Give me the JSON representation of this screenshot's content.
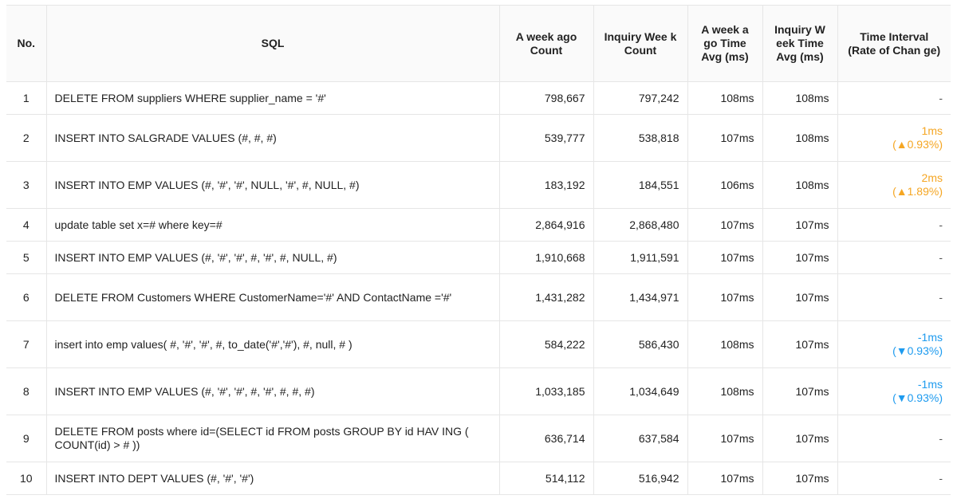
{
  "table": {
    "headers": {
      "no": "No.",
      "sql": "SQL",
      "a_count": "A week ago Count",
      "i_count": "Inquiry Wee k Count",
      "a_avg": "A week a go Time Avg (ms)",
      "i_avg": "Inquiry W eek Time Avg (ms)",
      "rate": "Time Interval (Rate of Chan ge)"
    },
    "rows": [
      {
        "no": "1",
        "sql": "DELETE FROM suppliers WHERE supplier_name = '#'",
        "a_count": "798,667",
        "i_count": "797,242",
        "a_avg": "108ms",
        "i_avg": "108ms",
        "rate_value": "-",
        "rate_pct": "",
        "trend": "none"
      },
      {
        "no": "2",
        "sql": "INSERT INTO SALGRADE VALUES (#, #, #)",
        "a_count": "539,777",
        "i_count": "538,818",
        "a_avg": "107ms",
        "i_avg": "108ms",
        "rate_value": "1ms",
        "rate_pct": "(▲0.93%)",
        "trend": "up"
      },
      {
        "no": "3",
        "sql": "INSERT INTO EMP VALUES (#, '#', '#', NULL, '#', #, NULL, #)",
        "a_count": "183,192",
        "i_count": "184,551",
        "a_avg": "106ms",
        "i_avg": "108ms",
        "rate_value": "2ms",
        "rate_pct": "(▲1.89%)",
        "trend": "up"
      },
      {
        "no": "4",
        "sql": "update table set x=# where key=#",
        "a_count": "2,864,916",
        "i_count": "2,868,480",
        "a_avg": "107ms",
        "i_avg": "107ms",
        "rate_value": "-",
        "rate_pct": "",
        "trend": "none"
      },
      {
        "no": "5",
        "sql": "INSERT INTO EMP VALUES (#, '#', '#', #, '#', #, NULL, #)",
        "a_count": "1,910,668",
        "i_count": "1,911,591",
        "a_avg": "107ms",
        "i_avg": "107ms",
        "rate_value": "-",
        "rate_pct": "",
        "trend": "none"
      },
      {
        "no": "6",
        "sql": "DELETE FROM Customers WHERE CustomerName='#' AND ContactName ='#'",
        "a_count": "1,431,282",
        "i_count": "1,434,971",
        "a_avg": "107ms",
        "i_avg": "107ms",
        "rate_value": "-",
        "rate_pct": "",
        "trend": "none"
      },
      {
        "no": "7",
        "sql": "insert into emp values( #, '#', '#', #, to_date('#','#'), #, null, # )",
        "a_count": "584,222",
        "i_count": "586,430",
        "a_avg": "108ms",
        "i_avg": "107ms",
        "rate_value": "-1ms",
        "rate_pct": "(▼0.93%)",
        "trend": "down"
      },
      {
        "no": "8",
        "sql": "INSERT INTO EMP VALUES (#, '#', '#', #, '#', #, #, #)",
        "a_count": "1,033,185",
        "i_count": "1,034,649",
        "a_avg": "108ms",
        "i_avg": "107ms",
        "rate_value": "-1ms",
        "rate_pct": "(▼0.93%)",
        "trend": "down"
      },
      {
        "no": "9",
        "sql": "DELETE FROM posts where id=(SELECT id FROM posts GROUP BY id HAV ING ( COUNT(id) > # ))",
        "a_count": "636,714",
        "i_count": "637,584",
        "a_avg": "107ms",
        "i_avg": "107ms",
        "rate_value": "-",
        "rate_pct": "",
        "trend": "none"
      },
      {
        "no": "10",
        "sql": "INSERT INTO DEPT VALUES (#, '#', '#')",
        "a_count": "514,112",
        "i_count": "516,942",
        "a_avg": "107ms",
        "i_avg": "107ms",
        "rate_value": "-",
        "rate_pct": "",
        "trend": "none"
      }
    ]
  },
  "colors": {
    "up": "#f5a623",
    "down": "#1e9bef",
    "border": "#e6e6e6",
    "header_bg": "#fafafa"
  }
}
